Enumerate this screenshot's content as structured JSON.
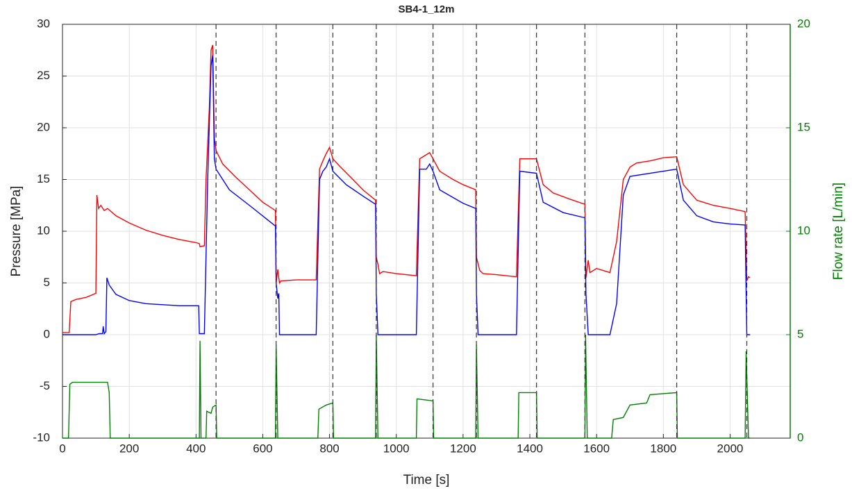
{
  "chart_data": {
    "type": "line",
    "title": "SB4-1_12m",
    "xlabel": "Time [s]",
    "ylabel": "Pressure [MPa]",
    "y2label": "Flow rate [L/min]",
    "y2color": "#008000",
    "xlim": [
      0,
      2180
    ],
    "xticks": [
      0,
      200,
      400,
      600,
      800,
      1000,
      1200,
      1400,
      1600,
      1800,
      2000
    ],
    "ylim": [
      -10,
      30
    ],
    "yticks": [
      -10,
      -5,
      0,
      5,
      10,
      15,
      20,
      25,
      30
    ],
    "y2lim": [
      0,
      20
    ],
    "y2ticks": [
      0,
      5,
      10,
      15,
      20
    ],
    "grid": true,
    "vlines": [
      460,
      640,
      810,
      940,
      1110,
      1240,
      1420,
      1565,
      1840,
      2050
    ],
    "series": [
      {
        "color": "#ff0000",
        "axis": "y",
        "x": [
          0,
          20,
          25,
          40,
          70,
          100,
          103,
          108,
          115,
          125,
          135,
          160,
          200,
          250,
          300,
          350,
          400,
          410,
          412,
          425,
          430,
          440,
          445,
          450,
          455,
          460,
          480,
          520,
          560,
          600,
          638,
          640,
          645,
          650,
          655,
          700,
          760,
          770,
          780,
          790,
          800,
          810,
          830,
          870,
          900,
          938,
          940,
          945,
          950,
          960,
          1000,
          1060,
          1070,
          1080,
          1095,
          1100,
          1110,
          1130,
          1170,
          1200,
          1238,
          1240,
          1250,
          1260,
          1300,
          1360,
          1370,
          1420,
          1440,
          1470,
          1520,
          1565,
          1568,
          1575,
          1580,
          1600,
          1640,
          1660,
          1680,
          1700,
          1720,
          1760,
          1800,
          1840,
          1860,
          1900,
          1950,
          2000,
          2045,
          2050,
          2055,
          2060
        ],
        "values": [
          0.2,
          0.2,
          3.2,
          3.4,
          3.6,
          4,
          13.5,
          12.2,
          12.5,
          12,
          12.2,
          11.5,
          10.8,
          10.1,
          9.6,
          9.2,
          8.9,
          8.8,
          8.5,
          8.6,
          15,
          22,
          27.5,
          28,
          19,
          17.8,
          16.5,
          15.2,
          14,
          12.8,
          12,
          5,
          6.3,
          5,
          5.2,
          5.3,
          5.3,
          16,
          16.8,
          17.5,
          18.1,
          17,
          16.3,
          15,
          14,
          13,
          7.5,
          6.8,
          5.9,
          6.1,
          5.9,
          5.7,
          17,
          17.2,
          17.5,
          17.6,
          17,
          15.8,
          15,
          14.5,
          14,
          7.5,
          6.2,
          5.9,
          5.8,
          5.6,
          17,
          17,
          14.5,
          13.7,
          13.1,
          12.6,
          5.5,
          7.2,
          6,
          6.4,
          6,
          9,
          15,
          16.2,
          16.6,
          16.8,
          17.1,
          17.2,
          14.5,
          13,
          12.5,
          12.2,
          11.9,
          5.2,
          5.6,
          5.5
        ]
      },
      {
        "color": "#0000ff",
        "axis": "y",
        "x": [
          0,
          100,
          110,
          120,
          122,
          125,
          130,
          133,
          140,
          160,
          200,
          250,
          300,
          350,
          408,
          410,
          425,
          435,
          445,
          450,
          455,
          460,
          500,
          560,
          638,
          640,
          645,
          648,
          650,
          760,
          770,
          780,
          790,
          800,
          810,
          850,
          900,
          938,
          940,
          945,
          1060,
          1070,
          1090,
          1100,
          1110,
          1130,
          1200,
          1238,
          1240,
          1245,
          1360,
          1370,
          1420,
          1440,
          1500,
          1565,
          1568,
          1575,
          1640,
          1660,
          1680,
          1700,
          1800,
          1840,
          1860,
          1900,
          1950,
          2000,
          2045,
          2048,
          2050,
          2060
        ],
        "values": [
          0,
          0,
          0.1,
          0.1,
          0.8,
          0.1,
          0.3,
          5.5,
          4.8,
          3.9,
          3.3,
          3,
          2.9,
          2.8,
          2.8,
          0.1,
          0.1,
          15,
          26,
          27,
          17,
          16,
          14,
          12.5,
          10.5,
          5,
          3.5,
          4,
          0,
          0,
          15,
          15.8,
          16.2,
          17,
          15.8,
          14.5,
          13.4,
          12.6,
          4,
          0,
          0,
          16,
          16,
          16.5,
          15.8,
          14,
          12.7,
          12.2,
          4,
          0,
          0,
          15.8,
          15.6,
          12.8,
          11.8,
          11.3,
          4,
          0,
          0,
          3,
          13.5,
          15.3,
          15.8,
          16,
          13,
          11.5,
          10.9,
          10.7,
          10.6,
          4,
          0,
          0
        ]
      },
      {
        "color": "#008000",
        "axis": "y2",
        "x": [
          0,
          18,
          22,
          30,
          135,
          140,
          143,
          410,
          412,
          415,
          430,
          432,
          445,
          450,
          460,
          462,
          638,
          640,
          645,
          765,
          768,
          790,
          810,
          812,
          938,
          940,
          945,
          1060,
          1062,
          1110,
          1112,
          1238,
          1240,
          1245,
          1365,
          1367,
          1420,
          1422,
          1565,
          1567,
          1572,
          1645,
          1650,
          1680,
          1700,
          1750,
          1760,
          1840,
          1842,
          2045,
          2048,
          2055,
          2060
        ],
        "values": [
          0,
          0,
          2.6,
          2.7,
          2.7,
          2.2,
          0,
          0,
          4.7,
          0,
          0,
          1.3,
          1.2,
          1.5,
          1.6,
          0,
          0,
          4.5,
          0,
          0,
          1.4,
          1.6,
          1.7,
          0,
          0,
          5,
          0,
          0,
          1.9,
          1.8,
          0,
          0,
          4.5,
          0,
          0,
          2.2,
          2.2,
          0,
          0,
          5,
          0,
          0,
          0.9,
          1,
          1.6,
          1.7,
          2.1,
          2.2,
          0,
          0,
          4.2,
          0,
          0
        ]
      }
    ]
  }
}
